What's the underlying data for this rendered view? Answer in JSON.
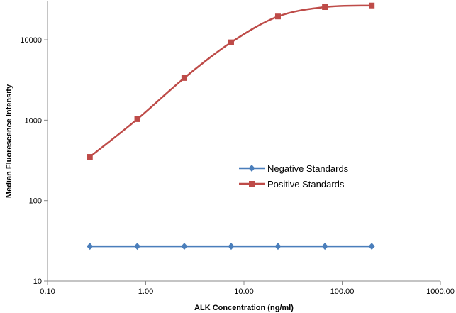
{
  "chart_data": {
    "type": "line",
    "xlabel": "ALK Concentration (ng/ml)",
    "ylabel": "Median Fluorescence Intensity",
    "x_scale": "log",
    "y_scale": "log",
    "xlim": [
      0.1,
      1000
    ],
    "ylim": [
      10,
      30000
    ],
    "x_ticks": [
      "0.10",
      "1.00",
      "10.00",
      "100.00",
      "1000.00"
    ],
    "y_ticks": [
      "10",
      "100",
      "1000",
      "10000"
    ],
    "grid": false,
    "legend_position": "center-right",
    "series": [
      {
        "name": "Negative Standards",
        "color": "#4a7ebb",
        "marker": "diamond",
        "x": [
          0.27,
          0.82,
          2.47,
          7.41,
          22.2,
          66.7,
          200
        ],
        "y": [
          27,
          27,
          27,
          27,
          27,
          27,
          27
        ]
      },
      {
        "name": "Positive Standards",
        "color": "#be4b48",
        "marker": "square",
        "x": [
          0.27,
          0.82,
          2.47,
          7.41,
          22.2,
          66.7,
          200
        ],
        "y": [
          350,
          1030,
          3350,
          9300,
          19500,
          25500,
          26700
        ]
      }
    ]
  }
}
